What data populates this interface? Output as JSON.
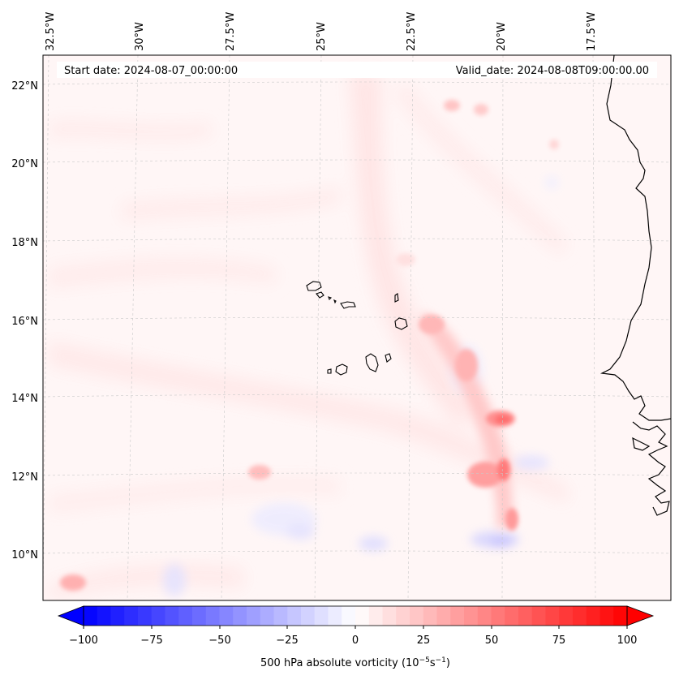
{
  "header": {
    "start_date": "Start date: 2024-08-07_00:00:00",
    "valid_date": "Valid_date: 2024-08-08T09:00:00.00"
  },
  "axes": {
    "lon_labels": [
      "32.5°W",
      "30°W",
      "27.5°W",
      "25°W",
      "22.5°W",
      "20°W",
      "17.5°W"
    ],
    "lat_labels": [
      "22°N",
      "20°N",
      "18°N",
      "16°N",
      "14°N",
      "12°N",
      "10°N"
    ]
  },
  "colorbar": {
    "ticks": [
      "−100",
      "−75",
      "−50",
      "−25",
      "0",
      "25",
      "50",
      "75",
      "100"
    ],
    "label": "500 hPa absolute vorticity (10",
    "label_exp1": "−5",
    "label_mid": "s",
    "label_exp2": "−1",
    "label_end": ")",
    "min": -100,
    "max": 100,
    "neg_color": "#0000ff",
    "pos_color": "#ff0000"
  },
  "map": {
    "field": "500 hPa absolute vorticity",
    "units": "1e-5 s^-1",
    "background_color": "#fff6f6"
  }
}
